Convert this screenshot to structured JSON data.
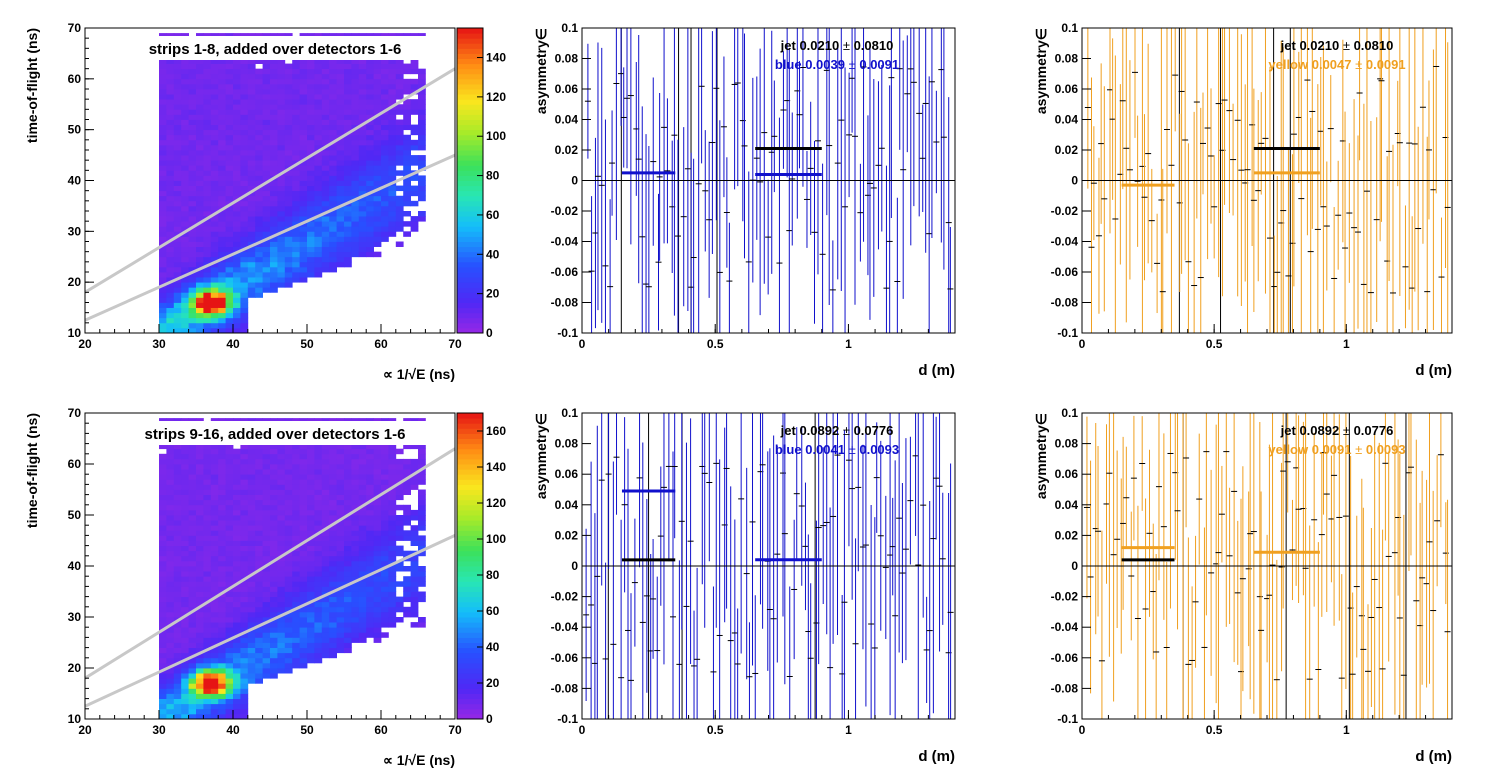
{
  "colors": {
    "blue": "#1010cc",
    "yellow": "#f0a020",
    "jet": "#000000",
    "band_line": "#c8c8c8"
  },
  "chart_data": [
    {
      "type": "heatmap",
      "panel": "top-left",
      "title": "strips 1-8, added over detectors 1-6",
      "xlabel": "∝ 1/√E (ns)",
      "ylabel": "time-of-flight (ns)",
      "xlim": [
        20,
        70
      ],
      "ylim": [
        10,
        70
      ],
      "xticks": [
        "20",
        "30",
        "40",
        "50",
        "60",
        "70"
      ],
      "yticks": [
        "10",
        "20",
        "30",
        "40",
        "50",
        "60",
        "70"
      ],
      "colorbar": {
        "min": 0,
        "max": 155,
        "ticks": [
          "0",
          "20",
          "40",
          "60",
          "80",
          "100",
          "120",
          "140"
        ]
      },
      "hotspot": {
        "x": 37,
        "y": 16,
        "value": 150
      },
      "band_lines": [
        {
          "x": [
            20,
            70
          ],
          "y": [
            18,
            62
          ]
        },
        {
          "x": [
            20,
            70
          ],
          "y": [
            12.5,
            45
          ]
        }
      ]
    },
    {
      "type": "scatter",
      "panel": "top-middle",
      "xlabel": "d (m)",
      "ylabel": "asymmetry∈",
      "xlim": [
        0,
        1.4
      ],
      "ylim": [
        -0.1,
        0.1
      ],
      "xticks": [
        "0",
        "0.5",
        "1"
      ],
      "yticks": [
        "-0.1",
        "-0.08",
        "-0.06",
        "-0.04",
        "-0.02",
        "0",
        "0.02",
        "0.04",
        "0.06",
        "0.08",
        "0.1"
      ],
      "legend": [
        {
          "label": "jet",
          "value": "0.0210",
          "error": "0.0810",
          "color": "#000000"
        },
        {
          "label": "blue",
          "value": "0.0039",
          "error": "0.0091",
          "color": "#1010cc"
        }
      ],
      "fits": [
        {
          "x": [
            0.15,
            0.35
          ],
          "y": 0.005,
          "color": "#1010cc"
        },
        {
          "x": [
            0.65,
            0.9
          ],
          "y": 0.0039,
          "color": "#1010cc"
        },
        {
          "x": [
            0.65,
            0.9
          ],
          "y": 0.021,
          "color": "#000000"
        }
      ],
      "series_color": "#1010cc",
      "seed": 11
    },
    {
      "type": "scatter",
      "panel": "top-right",
      "xlabel": "d (m)",
      "ylabel": "asymmetry∈",
      "xlim": [
        0,
        1.4
      ],
      "ylim": [
        -0.1,
        0.1
      ],
      "xticks": [
        "0",
        "0.5",
        "1"
      ],
      "yticks": [
        "-0.1",
        "-0.08",
        "-0.06",
        "-0.04",
        "-0.02",
        "0",
        "0.02",
        "0.04",
        "0.06",
        "0.08",
        "0.1"
      ],
      "legend": [
        {
          "label": "jet",
          "value": "0.0210",
          "error": "0.0810",
          "color": "#000000"
        },
        {
          "label": "yellow",
          "value": "0.0047",
          "error": "0.0091",
          "color": "#f0a020"
        }
      ],
      "fits": [
        {
          "x": [
            0.15,
            0.35
          ],
          "y": -0.003,
          "color": "#f0a020"
        },
        {
          "x": [
            0.65,
            0.9
          ],
          "y": 0.005,
          "color": "#f0a020"
        },
        {
          "x": [
            0.65,
            0.9
          ],
          "y": 0.021,
          "color": "#000000"
        }
      ],
      "series_color": "#f0a020",
      "seed": 23
    },
    {
      "type": "heatmap",
      "panel": "bottom-left",
      "title": "strips 9-16, added over detectors 1-6",
      "xlabel": "∝ 1/√E (ns)",
      "ylabel": "time-of-flight (ns)",
      "xlim": [
        20,
        70
      ],
      "ylim": [
        10,
        70
      ],
      "xticks": [
        "20",
        "30",
        "40",
        "50",
        "60",
        "70"
      ],
      "yticks": [
        "10",
        "20",
        "30",
        "40",
        "50",
        "60",
        "70"
      ],
      "colorbar": {
        "min": 0,
        "max": 170,
        "ticks": [
          "0",
          "20",
          "40",
          "60",
          "80",
          "100",
          "120",
          "140",
          "160"
        ]
      },
      "hotspot": {
        "x": 37,
        "y": 17,
        "value": 165
      },
      "band_lines": [
        {
          "x": [
            20,
            70
          ],
          "y": [
            18,
            63
          ]
        },
        {
          "x": [
            20,
            70
          ],
          "y": [
            12.5,
            46
          ]
        }
      ]
    },
    {
      "type": "scatter",
      "panel": "bottom-middle",
      "xlabel": "d (m)",
      "ylabel": "asymmetry∈",
      "xlim": [
        0,
        1.4
      ],
      "ylim": [
        -0.1,
        0.1
      ],
      "xticks": [
        "0",
        "0.5",
        "1"
      ],
      "yticks": [
        "-0.1",
        "-0.08",
        "-0.06",
        "-0.04",
        "-0.02",
        "0",
        "0.02",
        "0.04",
        "0.06",
        "0.08",
        "0.1"
      ],
      "legend": [
        {
          "label": "jet",
          "value": "0.0892",
          "error": "0.0776",
          "color": "#000000"
        },
        {
          "label": "blue",
          "value": "0.0041",
          "error": "0.0093",
          "color": "#1010cc"
        }
      ],
      "fits": [
        {
          "x": [
            0.15,
            0.35
          ],
          "y": 0.049,
          "color": "#1010cc"
        },
        {
          "x": [
            0.15,
            0.35
          ],
          "y": 0.004,
          "color": "#000000"
        },
        {
          "x": [
            0.65,
            0.9
          ],
          "y": 0.0041,
          "color": "#1010cc"
        }
      ],
      "series_color": "#1010cc",
      "seed": 37
    },
    {
      "type": "scatter",
      "panel": "bottom-right",
      "xlabel": "d (m)",
      "ylabel": "asymmetry∈",
      "xlim": [
        0,
        1.4
      ],
      "ylim": [
        -0.1,
        0.1
      ],
      "xticks": [
        "0",
        "0.5",
        "1"
      ],
      "yticks": [
        "-0.1",
        "-0.08",
        "-0.06",
        "-0.04",
        "-0.02",
        "0",
        "0.02",
        "0.04",
        "0.06",
        "0.08",
        "0.1"
      ],
      "legend": [
        {
          "label": "jet",
          "value": "0.0892",
          "error": "0.0776",
          "color": "#000000"
        },
        {
          "label": "yellow",
          "value": "0.0091",
          "error": "0.0093",
          "color": "#f0a020"
        }
      ],
      "fits": [
        {
          "x": [
            0.15,
            0.35
          ],
          "y": 0.012,
          "color": "#f0a020"
        },
        {
          "x": [
            0.15,
            0.35
          ],
          "y": 0.004,
          "color": "#000000"
        },
        {
          "x": [
            0.65,
            0.9
          ],
          "y": 0.009,
          "color": "#f0a020"
        }
      ],
      "series_color": "#f0a020",
      "seed": 51
    }
  ]
}
